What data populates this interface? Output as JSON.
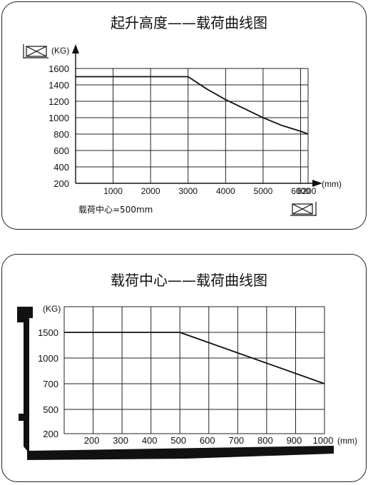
{
  "chart_data": [
    {
      "type": "line",
      "title": "起升高度——载荷曲线图",
      "ylabel": "(KG)",
      "xlabel": "(mm)",
      "x_ticks": [
        1000,
        2000,
        3000,
        4000,
        5000,
        6000,
        6200
      ],
      "y_ticks": [
        200,
        400,
        600,
        800,
        1000,
        1200,
        1400,
        1600
      ],
      "xlim": [
        0,
        6200
      ],
      "ylim": [
        200,
        1600
      ],
      "grid": true,
      "series": [
        {
          "x": [
            0,
            3000,
            3500,
            4000,
            4500,
            5000,
            5500,
            6000,
            6200
          ],
          "y": [
            1500,
            1500,
            1350,
            1220,
            1110,
            1000,
            905,
            835,
            800
          ]
        }
      ],
      "note": "载荷中心=500mm",
      "icons": [
        "load-box-icon",
        "load-box-icon"
      ]
    },
    {
      "type": "line",
      "title": "载荷中心——载荷曲线图",
      "ylabel": "(KG)",
      "xlabel": "(mm)",
      "x_ticks": [
        200,
        300,
        400,
        500,
        600,
        700,
        800,
        900,
        1000
      ],
      "y_ticks": [
        200,
        500,
        700,
        1000,
        1500
      ],
      "xlim": [
        100,
        1000
      ],
      "ylim": [
        200,
        1500
      ],
      "grid": true,
      "series": [
        {
          "x": [
            100,
            500,
            1000
          ],
          "y": [
            1500,
            1500,
            700
          ]
        }
      ],
      "icons": [
        "fork-icon"
      ]
    }
  ]
}
